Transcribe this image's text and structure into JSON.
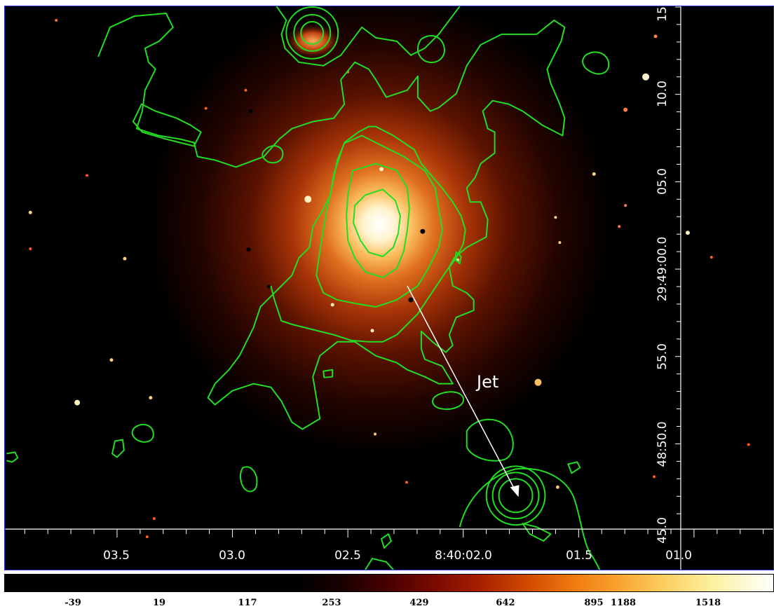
{
  "image": {
    "colors": {
      "contours": "#22dd22",
      "axes": "#ffffff",
      "frame_border": "#2b2bd0"
    },
    "annotation": {
      "label": "Jet"
    },
    "ra_labels": [
      "03.5",
      "03.0",
      "02.5",
      "8:40:02.0",
      "01.5",
      "01.0"
    ],
    "dec_labels": [
      "15",
      "10.0",
      "05.0",
      "29:49:00.0",
      "55.0",
      "48:50.0",
      "45.0"
    ],
    "colorbar": {
      "ticks": [
        "-39",
        "19",
        "117",
        "253",
        "429",
        "642",
        "895",
        "1188",
        "1518"
      ],
      "colormap": "heat"
    }
  }
}
